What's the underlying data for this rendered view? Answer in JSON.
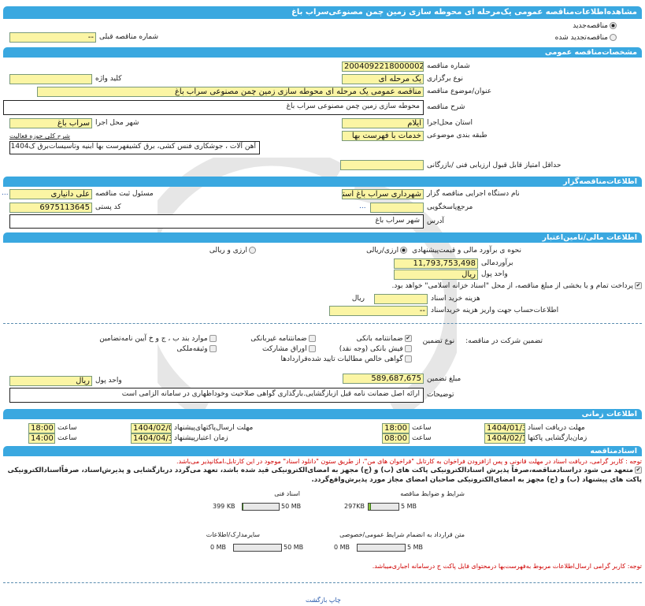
{
  "header": {
    "title": "مشاهده‌اطلاعات‌مناقصه عمومی یک‌مرحله ای محوطه سازی زمین چمن مصنوعی‌سراب باغ"
  },
  "tender_type": {
    "new_label": "مناقصه‌جدید",
    "new_selected": true,
    "renewed_label": "مناقصه‌تجدید شده",
    "renewed_selected": false,
    "prev_number_label": "شماره مناقصه قبلی",
    "prev_number_value": "--"
  },
  "general": {
    "section_title": "مشخصات‌مناقصه عمومی",
    "number_label": "شماره مناقصه",
    "number_value": "2004092218000002",
    "holding_type_label": "نوع برگزاری",
    "holding_type_value": "یک مرحله ای",
    "keyword_label": "کلید واژه",
    "keyword_value": "",
    "subject_label": "عنوان/موضوع مناقصه",
    "subject_value": "مناقصه عمومی یک مرحله ای محوطه سازی زمین چمن مصنوعی سراب باغ",
    "description_label": "شرح مناقصه",
    "description_value": "محوطه سازی زمین چمن مصنوعی سراب باغ",
    "province_label": "استان محل‌اجرا",
    "province_value": "ایلام",
    "city_label": "شهر محل اجرا",
    "city_value": "سراب باغ",
    "category_label": "طبقه بندی موضوعی",
    "category_value": "خدمات با فهرست بها",
    "activity_label": "شرح کلی حوزه فعالیت",
    "activity_value": "آهن آلات ، جوشکاری فنس کشی، برق کشیفهرست بها ابنیه وتاسیسات‌برق ک1404",
    "min_score_label": "حداقل امتیاز قابل قبول ارزیابی فنی /بازرگانی",
    "min_score_value": ""
  },
  "organizer": {
    "section_title": "اطلاعات‌مناقصه‌گزار",
    "org_label": "نام دستگاه اجرایی مناقصه گزار",
    "org_value": "شهرداری سراب باغ استان",
    "registrar_label": "مسئول ثبت مناقصه",
    "registrar_value": "علی دانیاری",
    "ellipsis": "...",
    "reference_label": "مرجع‌پاسخگویی",
    "reference_value": "",
    "postal_label": "کد پستی",
    "postal_value": "6975113645",
    "address_label": "آدرس",
    "address_value": "شهر سراب باغ"
  },
  "finance": {
    "section_title": "اطلاعات مالی/تامین‌اعتبار",
    "method_label": "نحوه ی برآورد مالی و قیمت‌پیشنهادی",
    "opt_rial": "ارزی/ریالی",
    "opt_rial_selected": true,
    "opt_mixed": "ارزی و ریالی",
    "opt_mixed_selected": false,
    "estimate_label": "برآورد‌مالی",
    "estimate_value": "11,793,753,498",
    "currency_label": "واحد پول",
    "currency_value": "ریال",
    "treasury_text": "پرداخت تمام و یا بخشی از مبلغ مناقصه، از محل \"اسناد خزانه اسلامی\" خواهد بود.",
    "treasury_checked": true,
    "doc_fee_label": "هزینه خرید اسناد",
    "doc_fee_value": "",
    "doc_fee_unit": "ریال",
    "account_label": "اطلاعات‌حساب جهت واریز هزینه خریداسناد",
    "account_value": "--"
  },
  "guarantee": {
    "label": "تضمین شرکت در مناقصه:",
    "type_label": "نوع تضمین",
    "options": [
      {
        "label": "ضمانتنامه بانکی",
        "checked": true
      },
      {
        "label": "ضمانتنامه غیربانکی",
        "checked": false
      },
      {
        "label": "موارد بند ب ، ج و خ آیین نامه‌تضامین",
        "checked": false
      },
      {
        "label": "فیش بانکی (وجه نقد)",
        "checked": false
      },
      {
        "label": "اوراق مشارکت",
        "checked": false
      },
      {
        "label": "وثیقه‌ملکی",
        "checked": false
      },
      {
        "label": "گواهی خالص مطالبات تایید شده‌قراردادها",
        "checked": false
      }
    ],
    "amount_label": "مبلغ تضمین",
    "amount_value": "589,687,675",
    "currency_label": "واحد پول",
    "currency_value": "ریال",
    "notes_label": "توضیحات",
    "notes_value": "ارائه اصل ضمانت نامه قبل ازبازگشایی.بارگذاری گواهی صلاحیت وخوداظهاری در سامانه الزامی است"
  },
  "timing": {
    "section_title": "اطلاعات زمانی",
    "doc_deadline_label": "مهلت دریافت اسناد",
    "doc_deadline_date": "1404/01/30",
    "doc_deadline_time": "18:00",
    "submit_deadline_label": "مهلت ارسال‌پاکتهای‌پیشنهاد",
    "submit_deadline_date": "1404/02/09",
    "submit_deadline_time": "18:00",
    "opening_label": "زمان‌بازگشایی پاکتها",
    "opening_date": "1404/02/10",
    "opening_time": "08:00",
    "validity_label": "زمان اعتبار‌پیشنهاد",
    "validity_date": "1404/04/31",
    "validity_time": "14:00",
    "time_label": "ساعت"
  },
  "documents": {
    "section_title": "اسنادمناقصه",
    "notice": "توجه : کاربر گرامی، دریافت اسناد در مهلت قانونی و پس ازافزودن فراخوان به کارتابل \"فراخوان های من\"، از طریق ستون \"دانلود اسناد\" موجود در این کارتابل،امکانپذیر می‌باشد.",
    "commitment": "متعهد می شود دراسنادمناقصه،صرفاً پذیرش اسنادالکترونیکی پاکت های (ب) و (ج) مجهز به امضای‌الکترونیکی قید شده باشد، تعهد می‌گردد دربازگشایی و پذیرش‌اسناد، صرفاًاسنادالکترونیکی پاکت های پیشنهاد (ب) و (ج) مجهز به امضای‌الکترونیکی صاحبان امضای مجاز مورد پذیرش‌واقع‌گردد.",
    "commitment_checked": true,
    "files": [
      {
        "label": "شرایط و ضوابط مناقصه",
        "size": "297KB",
        "max": "5 MB",
        "fill": 0.06
      },
      {
        "label": "اسناد فنی",
        "size": "399 KB",
        "max": "50 MB",
        "fill": 0.01
      },
      {
        "label": "متن قرارداد به انضمام شرایط عمومی/خصوصی",
        "size": "0 MB",
        "max": "5 MB",
        "fill": 0
      },
      {
        "label": "سایرمدارک/اطلاعات",
        "size": "0 MB",
        "max": "50 MB",
        "fill": 0
      }
    ],
    "notice2": "توجه: کاربر گرامی ارسال‌اطلاعات مربوط به‌فهرست‌بها درمحتوای فایل پاکت ج درسامانه اجباری‌میباشد."
  },
  "footer": {
    "print": "چاپ",
    "back": "بازگشت"
  },
  "colors": {
    "section_bar": "#3aa8e0",
    "input_bg": "#fbf5a4",
    "notice_red": "#d00000"
  }
}
